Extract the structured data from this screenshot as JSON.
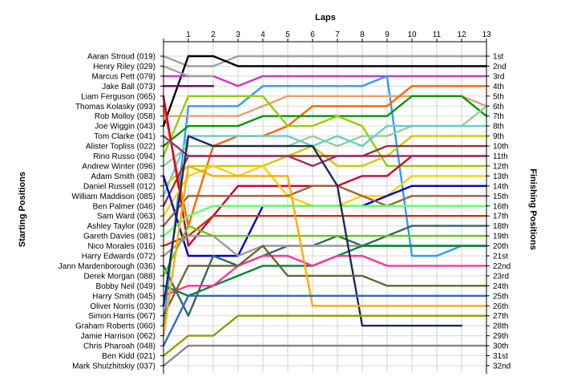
{
  "chart_data": {
    "type": "line",
    "title": "Laps",
    "ylabel_left": "Starting Positions",
    "ylabel_right": "Finishing Positions",
    "laps": [
      0,
      1,
      2,
      3,
      4,
      5,
      6,
      7,
      8,
      9,
      10,
      11,
      12,
      13
    ],
    "lap_labels": [
      "1",
      "2",
      "3",
      "4",
      "5",
      "6",
      "7",
      "8",
      "9",
      "10",
      "11",
      "12",
      "13"
    ],
    "drivers": [
      "Aaran Stroud (019)",
      "Henry Riley (029)",
      "Marcus Pett (079)",
      "Jake Ball (073)",
      "Liam Ferguson (065)",
      "Thomas Kolasky (093)",
      "Rob Molloy (058)",
      "Joe Wiggin (043)",
      "Tom Clarke (041)",
      "Alister Topliss (022)",
      "Rino Russo (094)",
      "Andrew Winter (096)",
      "Adam Smith (083)",
      "Daniel Russell (012)",
      "William Maddison (085)",
      "Ben Palmer (046)",
      "Sam Ward (063)",
      "Ashley Taylor (028)",
      "Gareth Davies (081)",
      "Nico Morales (016)",
      "Harry Edwards (072)",
      "Jann Mardenborough (036)",
      "Derek Morgan (088)",
      "Bobby Neil (049)",
      "Harry Smith (045)",
      "Oliver Norris (030)",
      "Simon Harris (067)",
      "Graham Roberts (060)",
      "Jamie Harrison (062)",
      "Chris Pharoah (048)",
      "Ben Kidd (021)",
      "Mark Shulzhitskiy (037)"
    ],
    "finishing_labels": [
      "1st",
      "2nd",
      "3rd",
      "4th",
      "5th",
      "6th",
      "7th",
      "8th",
      "9th",
      "10th",
      "11th",
      "12th",
      "13th",
      "14th",
      "15th",
      "16th",
      "17th",
      "18th",
      "19th",
      "20th",
      "21st",
      "22nd",
      "23rd",
      "24th",
      "25th",
      "26th",
      "27th",
      "28th",
      "29th",
      "30th",
      "31st",
      "32nd"
    ],
    "series": [
      {
        "color": "#A0A0A0",
        "positions": [
          1,
          2,
          2,
          1,
          1,
          1,
          1,
          1,
          1,
          1,
          1,
          1,
          1,
          1
        ]
      },
      {
        "color": "#000000",
        "positions": [
          8,
          1,
          1,
          2,
          2,
          2,
          2,
          2,
          2,
          2,
          2,
          2,
          2,
          2
        ]
      },
      {
        "color": "#CC33CC",
        "positions": [
          3,
          3,
          3,
          4,
          3,
          3,
          3,
          3,
          3,
          3,
          3,
          3,
          3,
          3
        ]
      },
      {
        "color": "#660066",
        "positions": [
          4,
          4,
          4
        ]
      },
      {
        "color": "#A0A0A0",
        "positions": [
          2,
          3,
          3
        ]
      },
      {
        "color": "#3399FF",
        "positions": [
          28,
          6,
          6,
          6,
          4,
          4,
          4,
          4,
          4,
          3,
          21,
          21,
          20,
          20
        ]
      },
      {
        "color": "#E8A070",
        "positions": [
          7,
          7,
          7,
          7,
          6,
          5,
          5,
          5,
          5,
          5,
          5,
          5,
          5,
          6
        ]
      },
      {
        "color": "#FF6600",
        "positions": [
          6,
          18,
          10,
          9,
          9,
          8,
          6,
          6,
          6,
          6,
          4,
          4,
          4,
          4
        ]
      },
      {
        "color": "#009900",
        "positions": [
          10,
          8,
          8,
          8,
          7,
          7,
          7,
          7,
          7,
          7,
          5,
          5,
          5,
          7
        ]
      },
      {
        "color": "#99CC00",
        "positions": [
          11,
          5,
          5,
          5,
          5,
          8,
          8,
          7,
          8,
          12,
          12,
          12,
          12,
          12
        ]
      },
      {
        "color": "#99CC99",
        "positions": [
          12,
          10,
          10,
          10,
          10,
          10,
          9,
          10,
          9,
          9,
          8,
          8,
          8,
          6
        ]
      },
      {
        "color": "#66CCCC",
        "positions": [
          15,
          9,
          9,
          9,
          9,
          9,
          10,
          9,
          10,
          8,
          8,
          8,
          8,
          8
        ]
      },
      {
        "color": "#CCCC00",
        "positions": [
          14,
          12,
          12,
          12,
          12,
          11,
          10,
          12,
          12,
          11,
          9,
          9,
          9,
          9
        ]
      },
      {
        "color": "#993333",
        "positions": [
          16,
          11,
          11,
          11,
          11,
          11,
          11,
          11,
          11,
          10,
          10,
          10,
          10,
          10
        ]
      },
      {
        "color": "#CC0033",
        "positions": [
          5,
          20,
          17,
          14,
          14,
          14,
          14,
          14,
          13,
          13,
          11,
          11,
          11,
          11
        ]
      },
      {
        "color": "#993366",
        "positions": [
          9,
          11,
          11,
          11,
          11,
          11,
          12,
          11,
          11,
          11,
          11,
          11,
          11,
          11
        ]
      },
      {
        "color": "#FFD000",
        "positions": [
          17,
          13,
          12,
          13,
          12,
          15,
          16,
          16,
          15,
          15,
          13,
          13,
          13,
          13
        ]
      },
      {
        "color": "#0000CC",
        "positions": [
          13,
          21,
          21,
          21,
          16,
          16,
          16,
          16,
          16,
          15,
          14,
          14,
          14,
          14
        ]
      },
      {
        "color": "#996633",
        "positions": [
          18,
          15,
          15,
          15,
          15,
          15,
          14,
          14,
          15,
          16,
          15,
          15,
          15,
          15
        ]
      },
      {
        "color": "#66FF66",
        "positions": [
          19,
          17,
          16,
          16,
          16,
          16,
          16,
          16,
          16,
          16,
          16,
          16,
          16,
          16
        ]
      },
      {
        "color": "#CC3300",
        "positions": [
          20,
          19,
          17,
          17,
          17,
          17,
          17,
          17,
          17,
          17,
          17,
          17,
          17,
          17
        ]
      },
      {
        "color": "#336666",
        "positions": [
          22,
          27,
          21,
          22,
          21,
          20,
          20,
          19,
          20,
          19,
          18,
          18,
          18,
          18
        ]
      },
      {
        "color": "#66CC00",
        "positions": [
          23,
          18,
          19,
          19,
          19,
          19,
          19,
          19,
          19,
          19,
          19,
          19,
          19,
          19
        ]
      },
      {
        "color": "#999999",
        "positions": [
          21,
          19,
          19,
          21,
          20,
          20,
          20,
          20,
          20,
          20,
          20,
          20,
          20,
          20
        ]
      },
      {
        "color": "#008833",
        "positions": [
          24,
          25,
          24,
          23,
          22,
          22,
          22,
          21,
          20,
          20,
          20,
          20,
          20,
          20
        ]
      },
      {
        "color": "#FF3399",
        "positions": [
          25,
          24,
          24,
          22,
          21,
          21,
          22,
          21,
          21,
          22,
          22,
          22,
          22,
          22
        ]
      },
      {
        "color": "#1A2A5A",
        "positions": [
          26,
          9,
          10,
          10,
          10,
          10,
          10,
          14,
          28,
          28,
          28,
          28,
          28
        ]
      },
      {
        "color": "#666633",
        "positions": [
          27,
          22,
          22,
          22,
          20,
          23,
          23,
          23,
          23,
          24,
          24,
          24,
          24,
          24
        ]
      },
      {
        "color": "#FFAA00",
        "positions": [
          29,
          12,
          13,
          13,
          13,
          13,
          26,
          26,
          26,
          26,
          26,
          26,
          26,
          26
        ]
      },
      {
        "color": "#3366CC",
        "positions": [
          30,
          25,
          25,
          25,
          25,
          25,
          25,
          25,
          25,
          25,
          25,
          25,
          25,
          25
        ]
      },
      {
        "color": "#999900",
        "positions": [
          31,
          29,
          29,
          27,
          27,
          27,
          27,
          27,
          27,
          27,
          27,
          27,
          27,
          27
        ]
      },
      {
        "color": "#888888",
        "positions": [
          32,
          30,
          30,
          30,
          30,
          30,
          30,
          30,
          30,
          30,
          30,
          30,
          30,
          30
        ]
      }
    ]
  }
}
